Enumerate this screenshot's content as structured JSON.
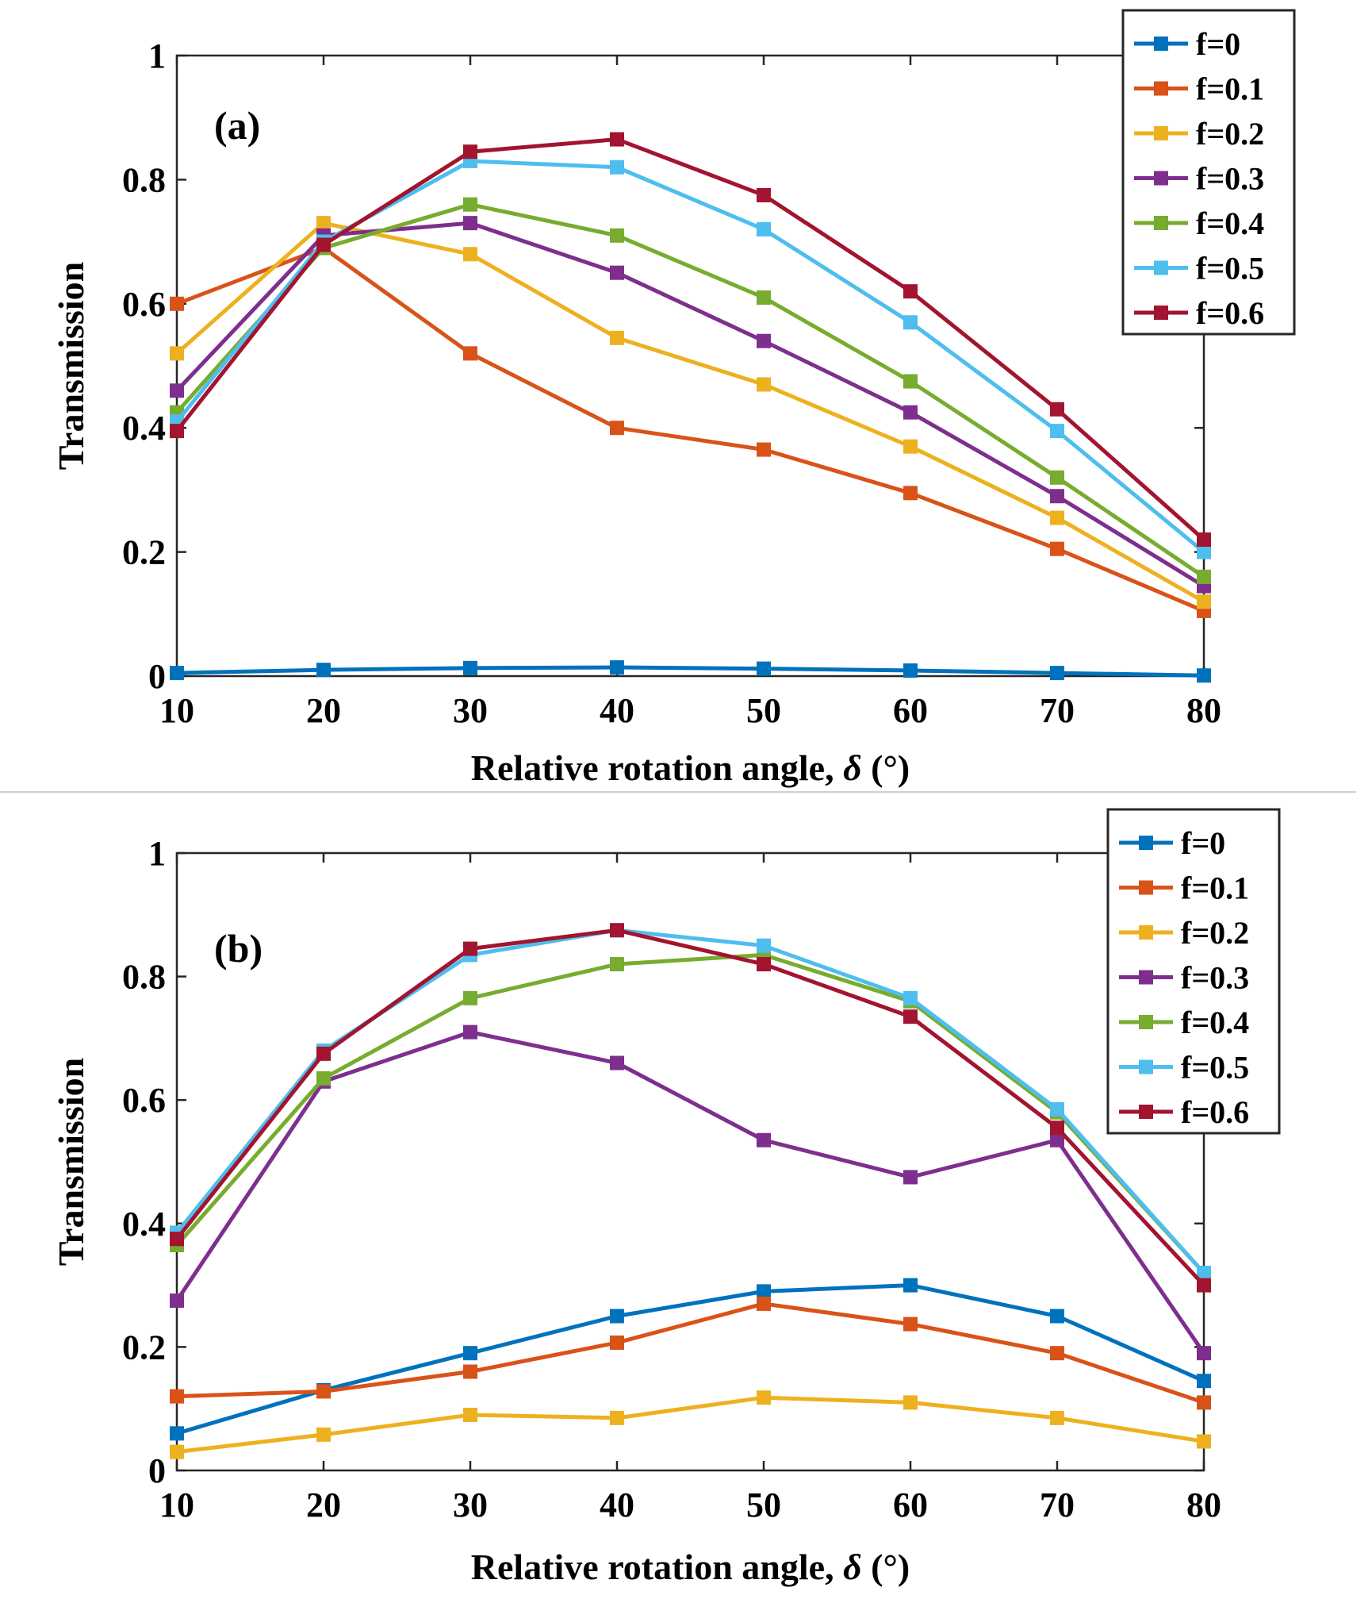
{
  "chart_data": [
    {
      "type": "line",
      "panel_label": "(a)",
      "xlabel_text": "Relative rotation angle, ",
      "xlabel_symbol": "δ",
      "xlabel_unit": " (°)",
      "ylabel": "Transmission",
      "x": [
        10,
        20,
        30,
        40,
        50,
        60,
        70,
        80
      ],
      "x_ticks": [
        "10",
        "20",
        "30",
        "40",
        "50",
        "60",
        "70",
        "80"
      ],
      "y_ticks": [
        "0",
        "0.2",
        "0.4",
        "0.6",
        "0.8",
        "1"
      ],
      "xlim": [
        10,
        80
      ],
      "ylim": [
        0,
        1
      ],
      "legend_position": "top-right",
      "series": [
        {
          "name": "f=0",
          "color": "#0072BD",
          "values": [
            0.005,
            0.01,
            0.013,
            0.014,
            0.012,
            0.009,
            0.005,
            0.001
          ]
        },
        {
          "name": "f=0.1",
          "color": "#D95319",
          "values": [
            0.6,
            0.69,
            0.52,
            0.4,
            0.365,
            0.295,
            0.205,
            0.105
          ]
        },
        {
          "name": "f=0.2",
          "color": "#EDB120",
          "values": [
            0.52,
            0.73,
            0.68,
            0.545,
            0.47,
            0.37,
            0.255,
            0.12
          ]
        },
        {
          "name": "f=0.3",
          "color": "#7E2F8E",
          "values": [
            0.46,
            0.71,
            0.73,
            0.65,
            0.54,
            0.425,
            0.29,
            0.145
          ]
        },
        {
          "name": "f=0.4",
          "color": "#77AC30",
          "values": [
            0.425,
            0.69,
            0.76,
            0.71,
            0.61,
            0.475,
            0.32,
            0.16
          ]
        },
        {
          "name": "f=0.5",
          "color": "#4DBEEE",
          "values": [
            0.41,
            0.7,
            0.83,
            0.82,
            0.72,
            0.57,
            0.395,
            0.2
          ]
        },
        {
          "name": "f=0.6",
          "color": "#A2142F",
          "values": [
            0.395,
            0.695,
            0.845,
            0.865,
            0.775,
            0.62,
            0.43,
            0.22
          ]
        }
      ]
    },
    {
      "type": "line",
      "panel_label": "(b)",
      "xlabel_text": "Relative rotation angle, ",
      "xlabel_symbol": "δ",
      "xlabel_unit": " (°)",
      "ylabel": "Transmission",
      "x": [
        10,
        20,
        30,
        40,
        50,
        60,
        70,
        80
      ],
      "x_ticks": [
        "10",
        "20",
        "30",
        "40",
        "50",
        "60",
        "70",
        "80"
      ],
      "y_ticks": [
        "0",
        "0.2",
        "0.4",
        "0.6",
        "0.8",
        "1"
      ],
      "xlim": [
        10,
        80
      ],
      "ylim": [
        0,
        1
      ],
      "legend_position": "top-right",
      "series": [
        {
          "name": "f=0",
          "color": "#0072BD",
          "values": [
            0.06,
            0.13,
            0.19,
            0.25,
            0.29,
            0.3,
            0.25,
            0.145
          ]
        },
        {
          "name": "f=0.1",
          "color": "#D95319",
          "values": [
            0.12,
            0.128,
            0.16,
            0.207,
            0.27,
            0.237,
            0.19,
            0.11
          ]
        },
        {
          "name": "f=0.2",
          "color": "#EDB120",
          "values": [
            0.03,
            0.058,
            0.09,
            0.085,
            0.118,
            0.11,
            0.085,
            0.047
          ]
        },
        {
          "name": "f=0.3",
          "color": "#7E2F8E",
          "values": [
            0.275,
            0.63,
            0.71,
            0.66,
            0.535,
            0.475,
            0.535,
            0.19
          ]
        },
        {
          "name": "f=0.4",
          "color": "#77AC30",
          "values": [
            0.365,
            0.635,
            0.765,
            0.82,
            0.835,
            0.76,
            0.58,
            0.32
          ]
        },
        {
          "name": "f=0.5",
          "color": "#4DBEEE",
          "values": [
            0.385,
            0.68,
            0.835,
            0.875,
            0.85,
            0.765,
            0.585,
            0.32
          ]
        },
        {
          "name": "f=0.6",
          "color": "#A2142F",
          "values": [
            0.375,
            0.675,
            0.845,
            0.875,
            0.82,
            0.735,
            0.555,
            0.3
          ]
        }
      ]
    }
  ]
}
